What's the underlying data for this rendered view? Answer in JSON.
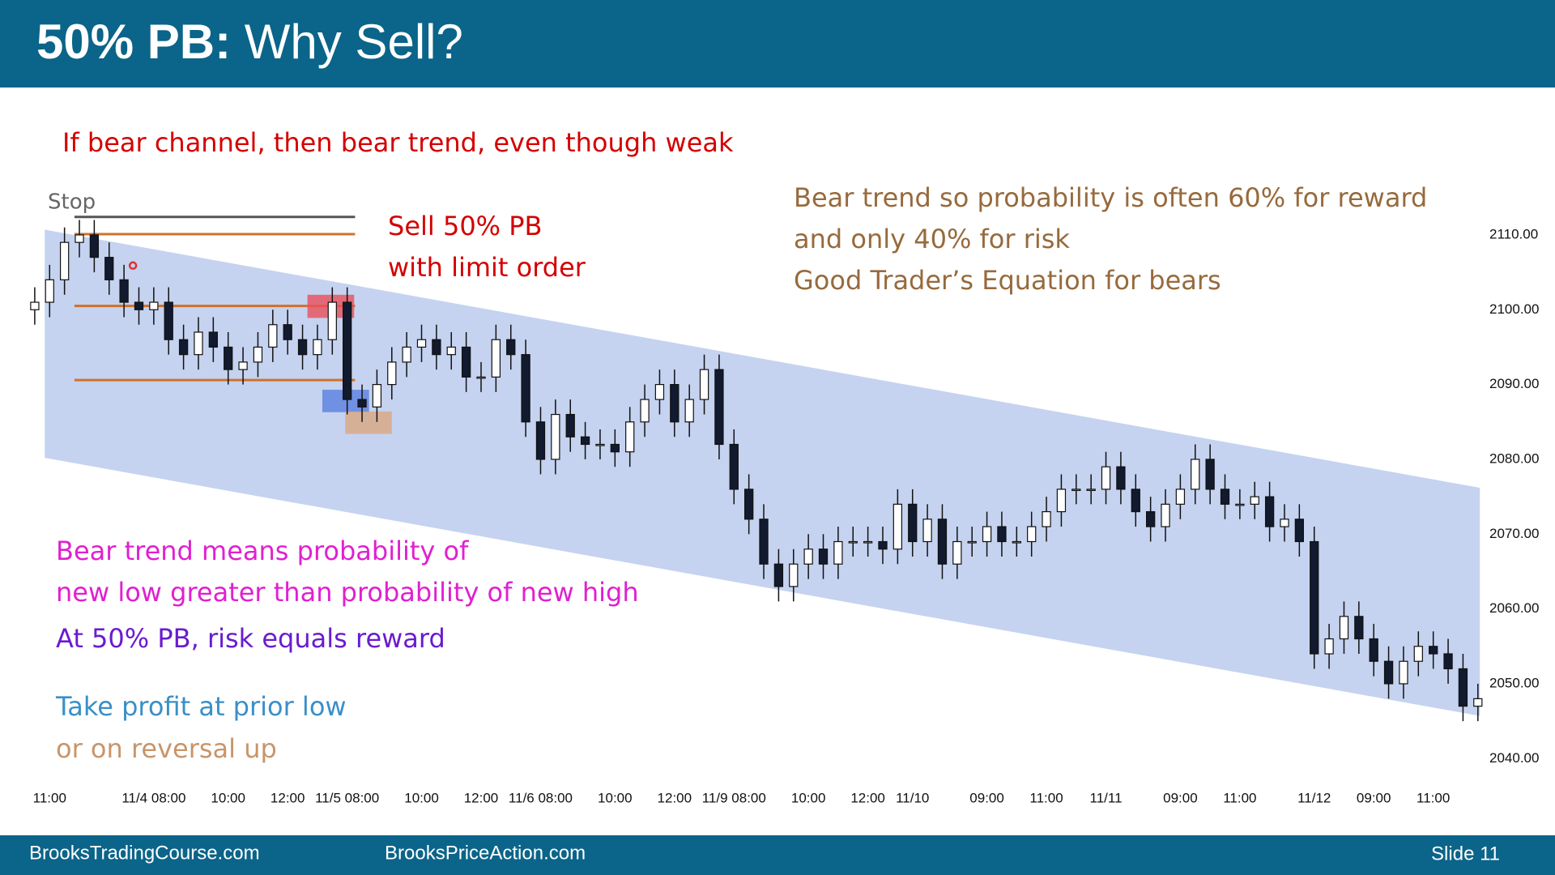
{
  "header": {
    "title_bold": "50% PB:",
    "title_rest": "Why Sell?"
  },
  "annotations": {
    "top": "If bear channel, then bear trend, even though weak",
    "stop": "Stop",
    "sell_1": "Sell 50% PB",
    "sell_2": "with limit order",
    "prob_1": "Bear trend so probability is often 60% for reward",
    "prob_2": "and only 40% for risk",
    "prob_3": "Good Trader’s Equation for bears",
    "mean_1": "Bear trend means probability of",
    "mean_2": "new low greater than probability of new high",
    "risk": "At 50% PB, risk equals reward",
    "take_1": "Take profit at prior low",
    "take_2": "or on reversal up"
  },
  "footer": {
    "left": "BrooksTradingCourse.com",
    "middle": "BrooksPriceAction.com",
    "right": "Slide 11"
  },
  "chart_data": {
    "type": "candlestick",
    "categories": [
      null,
      "11:00",
      null,
      null,
      null,
      null,
      null,
      null,
      "11/4 08:00",
      null,
      null,
      null,
      null,
      "10:00",
      null,
      null,
      null,
      "12:00",
      null,
      null,
      null,
      "11/5 08:00",
      null,
      null,
      null,
      null,
      "10:00",
      null,
      null,
      null,
      "12:00",
      null,
      null,
      null,
      "11/6 08:00",
      null,
      null,
      null,
      null,
      "10:00",
      null,
      null,
      null,
      "12:00",
      null,
      null,
      null,
      "11/9 08:00",
      null,
      null,
      null,
      null,
      "10:00",
      null,
      null,
      null,
      "12:00",
      null,
      null,
      "11/10",
      null,
      null,
      null,
      null,
      "09:00",
      null,
      null,
      null,
      "11:00",
      null,
      null,
      null,
      "11/11",
      null,
      null,
      null,
      null,
      "09:00",
      null,
      null,
      null,
      "11:00",
      null,
      null,
      null,
      null,
      "11/12",
      null,
      null,
      null,
      "09:00",
      null,
      null,
      null,
      "11:00",
      null,
      null,
      null
    ],
    "open": [
      2100,
      2101,
      2104,
      2109,
      2110,
      2107,
      2104,
      2101,
      2100,
      2101,
      2096,
      2094,
      2097,
      2095,
      2092,
      2093,
      2095,
      2098,
      2096,
      2094,
      2096,
      2101,
      2088,
      2087,
      2090,
      2093,
      2095,
      2096,
      2094,
      2095,
      2091,
      2091,
      2096,
      2094,
      2085,
      2080,
      2086,
      2083,
      2082,
      2082,
      2081,
      2085,
      2088,
      2090,
      2085,
      2088,
      2092,
      2082,
      2076,
      2072,
      2066,
      2063,
      2066,
      2068,
      2066,
      2069,
      2069,
      2069,
      2068,
      2074,
      2069,
      2072,
      2066,
      2069,
      2069,
      2071,
      2069,
      2069,
      2071,
      2073,
      2076,
      2076,
      2076,
      2079,
      2076,
      2073,
      2071,
      2074,
      2076,
      2080,
      2076,
      2074,
      2074,
      2075,
      2071,
      2072,
      2069,
      2054,
      2056,
      2059,
      2056,
      2053,
      2050,
      2053,
      2055,
      2054,
      2052,
      2047
    ],
    "high": [
      2103,
      2106,
      2111,
      2112,
      2112,
      2109,
      2106,
      2103,
      2103,
      2103,
      2098,
      2099,
      2099,
      2097,
      2095,
      2097,
      2100,
      2100,
      2098,
      2098,
      2103,
      2103,
      2090,
      2092,
      2095,
      2097,
      2098,
      2098,
      2097,
      2097,
      2093,
      2098,
      2098,
      2096,
      2087,
      2088,
      2088,
      2085,
      2084,
      2084,
      2087,
      2090,
      2092,
      2092,
      2090,
      2094,
      2094,
      2084,
      2078,
      2074,
      2068,
      2068,
      2070,
      2070,
      2071,
      2071,
      2071,
      2071,
      2076,
      2076,
      2074,
      2074,
      2071,
      2071,
      2073,
      2073,
      2071,
      2073,
      2075,
      2078,
      2078,
      2078,
      2081,
      2081,
      2078,
      2075,
      2076,
      2078,
      2082,
      2082,
      2078,
      2076,
      2077,
      2077,
      2074,
      2074,
      2071,
      2058,
      2061,
      2061,
      2058,
      2055,
      2055,
      2057,
      2057,
      2056,
      2054,
      2050
    ],
    "low": [
      2098,
      2099,
      2102,
      2107,
      2105,
      2102,
      2099,
      2098,
      2098,
      2094,
      2092,
      2092,
      2093,
      2090,
      2090,
      2091,
      2093,
      2094,
      2092,
      2092,
      2094,
      2086,
      2085,
      2085,
      2088,
      2091,
      2093,
      2092,
      2092,
      2089,
      2089,
      2089,
      2092,
      2083,
      2078,
      2078,
      2081,
      2080,
      2080,
      2079,
      2079,
      2083,
      2086,
      2083,
      2083,
      2086,
      2080,
      2074,
      2070,
      2064,
      2061,
      2061,
      2064,
      2064,
      2064,
      2067,
      2067,
      2066,
      2066,
      2067,
      2067,
      2064,
      2064,
      2067,
      2067,
      2067,
      2067,
      2067,
      2069,
      2071,
      2074,
      2074,
      2074,
      2074,
      2071,
      2069,
      2069,
      2072,
      2074,
      2074,
      2072,
      2072,
      2072,
      2069,
      2069,
      2067,
      2052,
      2052,
      2054,
      2054,
      2051,
      2048,
      2048,
      2051,
      2052,
      2050,
      2045,
      2045
    ],
    "close": [
      2101,
      2104,
      2109,
      2110,
      2107,
      2104,
      2101,
      2100,
      2101,
      2096,
      2094,
      2097,
      2095,
      2092,
      2093,
      2095,
      2098,
      2096,
      2094,
      2096,
      2101,
      2088,
      2087,
      2090,
      2093,
      2095,
      2096,
      2094,
      2095,
      2091,
      2091,
      2096,
      2094,
      2085,
      2080,
      2086,
      2083,
      2082,
      2082,
      2081,
      2085,
      2088,
      2090,
      2085,
      2088,
      2092,
      2082,
      2076,
      2072,
      2066,
      2063,
      2066,
      2068,
      2066,
      2069,
      2069,
      2069,
      2068,
      2074,
      2069,
      2072,
      2066,
      2069,
      2069,
      2071,
      2069,
      2069,
      2071,
      2073,
      2076,
      2076,
      2076,
      2079,
      2076,
      2073,
      2071,
      2074,
      2076,
      2080,
      2076,
      2074,
      2074,
      2075,
      2071,
      2072,
      2069,
      2054,
      2056,
      2059,
      2056,
      2053,
      2050,
      2053,
      2055,
      2054,
      2052,
      2047,
      2048
    ],
    "up_color": "#ffffff",
    "down_color": "#111a2e",
    "ylim": [
      2037.3,
      2116.2
    ],
    "yticks": [
      {
        "value": 2110,
        "label": "2110.00"
      },
      {
        "value": 2100,
        "label": "2100.00"
      },
      {
        "value": 2090,
        "label": "2090.00"
      },
      {
        "value": 2080,
        "label": "2080.00"
      },
      {
        "value": 2070,
        "label": "2070.00"
      },
      {
        "value": 2060,
        "label": "2060.00"
      },
      {
        "value": 2050,
        "label": "2050.00"
      },
      {
        "value": 2040,
        "label": "2040.00"
      }
    ],
    "channel": {
      "x": [
        0.67,
        97.13
      ],
      "upper": [
        2110.7,
        2076.2
      ],
      "lower": [
        2080.2,
        2045.7
      ],
      "color": "#c5d3f0"
    },
    "levels": [
      {
        "value": 2112.4,
        "color": "#555555"
      },
      {
        "value": 2110.1,
        "color": "#d0712a"
      },
      {
        "value": 2100.5,
        "color": "#d0712a"
      },
      {
        "value": 2090.6,
        "color": "#d0712a"
      }
    ],
    "level_x": [
      2.67,
      21.53
    ],
    "zones": [
      {
        "x": [
          18.33,
          21.47
        ],
        "y": [
          2098.9,
          2102
        ],
        "color": "#e8505a"
      },
      {
        "x": [
          19.33,
          22.47
        ],
        "y": [
          2086.3,
          2089.3
        ],
        "color": "#5a7fe0"
      },
      {
        "x": [
          20.87,
          24
        ],
        "y": [
          2083.4,
          2086.4
        ],
        "color": "#d9a77f"
      }
    ],
    "marker": {
      "x": 6.6,
      "y": 2105.9,
      "color": "#e03030"
    }
  }
}
